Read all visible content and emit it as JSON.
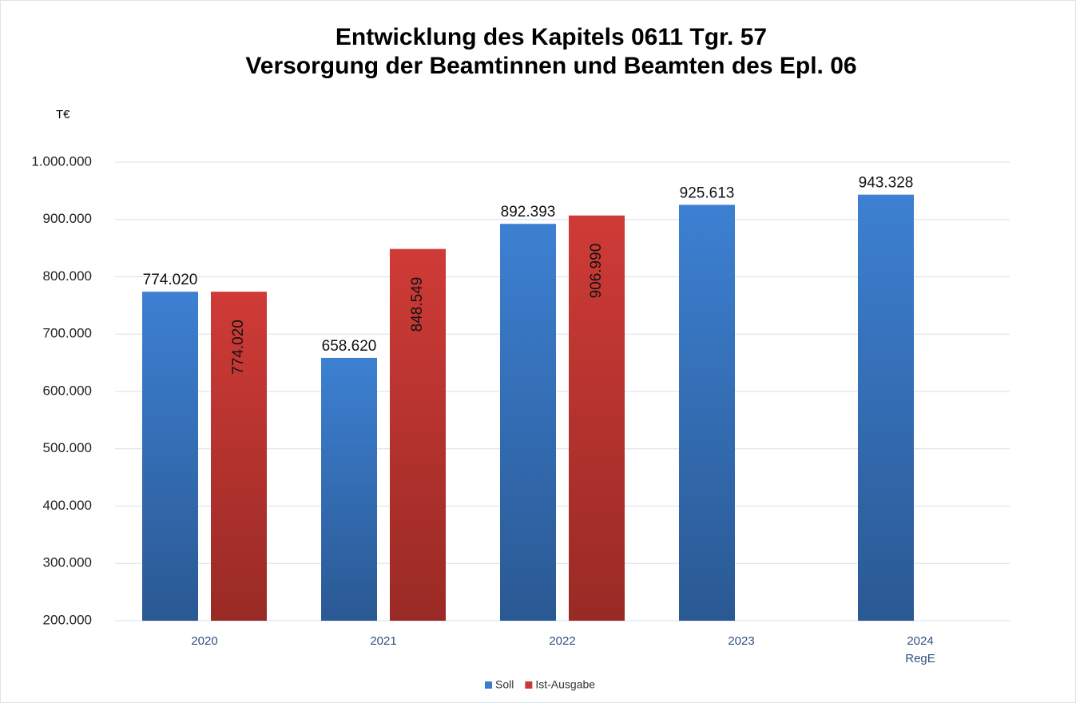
{
  "chart_data": {
    "type": "bar",
    "title": "Entwicklung des Kapitels 0611 Tgr. 57\nVersorgung der Beamtinnen und Beamten des Epl. 06",
    "y_label": "T€",
    "categories": [
      "2020",
      "2021",
      "2022",
      "2023",
      "2024\nRegE"
    ],
    "series": [
      {
        "name": "Soll",
        "color": "#3a7bcc",
        "values": [
          774020,
          658620,
          892393,
          925613,
          943328
        ],
        "value_labels": [
          "774.020",
          "658.620",
          "892.393",
          "925.613",
          "943.328"
        ]
      },
      {
        "name": "Ist-Ausgabe",
        "color": "#c93a36",
        "values": [
          774020,
          848549,
          906990,
          null,
          null
        ],
        "value_labels": [
          "774.020",
          "848.549",
          "906.990",
          null,
          null
        ]
      }
    ],
    "ylim": [
      200000,
      1000000
    ],
    "yticks": [
      {
        "value": 200000,
        "label": "200.000"
      },
      {
        "value": 300000,
        "label": "300.000"
      },
      {
        "value": 400000,
        "label": "400.000"
      },
      {
        "value": 500000,
        "label": "500.000"
      },
      {
        "value": 600000,
        "label": "600.000"
      },
      {
        "value": 700000,
        "label": "700.000"
      },
      {
        "value": 800000,
        "label": "800.000"
      },
      {
        "value": 900000,
        "label": "900.000"
      },
      {
        "value": 1000000,
        "label": "1.000.000"
      }
    ],
    "grid": true,
    "legend": "bottom"
  }
}
